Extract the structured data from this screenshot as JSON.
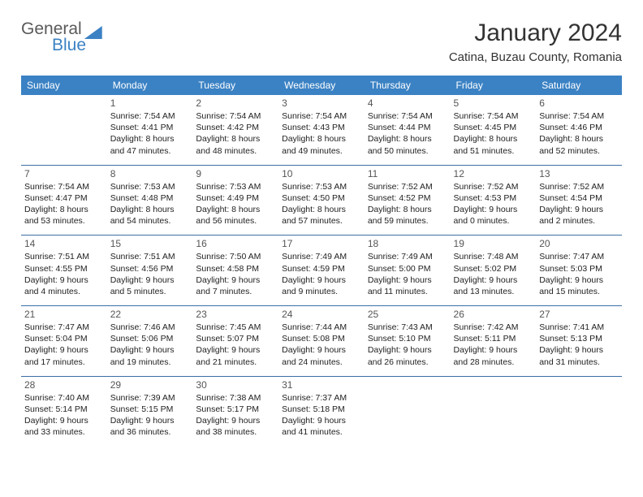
{
  "brand": {
    "a": "General",
    "b": "Blue"
  },
  "header": {
    "month": "January 2024",
    "location": "Catina, Buzau County, Romania"
  },
  "days": [
    "Sunday",
    "Monday",
    "Tuesday",
    "Wednesday",
    "Thursday",
    "Friday",
    "Saturday"
  ],
  "style": {
    "header_bg": "#3b82c4",
    "header_text": "#ffffff",
    "row_border": "#3b6fa5",
    "body_text": "#222222",
    "daynum_color": "#555555",
    "daynum_fontsize": 12,
    "cell_fontsize": 10.5,
    "header_fontsize": 12,
    "title_fontsize": 30,
    "location_fontsize": 15
  },
  "weeks": [
    [
      null,
      {
        "n": "1",
        "sr": "7:54 AM",
        "ss": "4:41 PM",
        "dl": "8 hours and 47 minutes."
      },
      {
        "n": "2",
        "sr": "7:54 AM",
        "ss": "4:42 PM",
        "dl": "8 hours and 48 minutes."
      },
      {
        "n": "3",
        "sr": "7:54 AM",
        "ss": "4:43 PM",
        "dl": "8 hours and 49 minutes."
      },
      {
        "n": "4",
        "sr": "7:54 AM",
        "ss": "4:44 PM",
        "dl": "8 hours and 50 minutes."
      },
      {
        "n": "5",
        "sr": "7:54 AM",
        "ss": "4:45 PM",
        "dl": "8 hours and 51 minutes."
      },
      {
        "n": "6",
        "sr": "7:54 AM",
        "ss": "4:46 PM",
        "dl": "8 hours and 52 minutes."
      }
    ],
    [
      {
        "n": "7",
        "sr": "7:54 AM",
        "ss": "4:47 PM",
        "dl": "8 hours and 53 minutes."
      },
      {
        "n": "8",
        "sr": "7:53 AM",
        "ss": "4:48 PM",
        "dl": "8 hours and 54 minutes."
      },
      {
        "n": "9",
        "sr": "7:53 AM",
        "ss": "4:49 PM",
        "dl": "8 hours and 56 minutes."
      },
      {
        "n": "10",
        "sr": "7:53 AM",
        "ss": "4:50 PM",
        "dl": "8 hours and 57 minutes."
      },
      {
        "n": "11",
        "sr": "7:52 AM",
        "ss": "4:52 PM",
        "dl": "8 hours and 59 minutes."
      },
      {
        "n": "12",
        "sr": "7:52 AM",
        "ss": "4:53 PM",
        "dl": "9 hours and 0 minutes."
      },
      {
        "n": "13",
        "sr": "7:52 AM",
        "ss": "4:54 PM",
        "dl": "9 hours and 2 minutes."
      }
    ],
    [
      {
        "n": "14",
        "sr": "7:51 AM",
        "ss": "4:55 PM",
        "dl": "9 hours and 4 minutes."
      },
      {
        "n": "15",
        "sr": "7:51 AM",
        "ss": "4:56 PM",
        "dl": "9 hours and 5 minutes."
      },
      {
        "n": "16",
        "sr": "7:50 AM",
        "ss": "4:58 PM",
        "dl": "9 hours and 7 minutes."
      },
      {
        "n": "17",
        "sr": "7:49 AM",
        "ss": "4:59 PM",
        "dl": "9 hours and 9 minutes."
      },
      {
        "n": "18",
        "sr": "7:49 AM",
        "ss": "5:00 PM",
        "dl": "9 hours and 11 minutes."
      },
      {
        "n": "19",
        "sr": "7:48 AM",
        "ss": "5:02 PM",
        "dl": "9 hours and 13 minutes."
      },
      {
        "n": "20",
        "sr": "7:47 AM",
        "ss": "5:03 PM",
        "dl": "9 hours and 15 minutes."
      }
    ],
    [
      {
        "n": "21",
        "sr": "7:47 AM",
        "ss": "5:04 PM",
        "dl": "9 hours and 17 minutes."
      },
      {
        "n": "22",
        "sr": "7:46 AM",
        "ss": "5:06 PM",
        "dl": "9 hours and 19 minutes."
      },
      {
        "n": "23",
        "sr": "7:45 AM",
        "ss": "5:07 PM",
        "dl": "9 hours and 21 minutes."
      },
      {
        "n": "24",
        "sr": "7:44 AM",
        "ss": "5:08 PM",
        "dl": "9 hours and 24 minutes."
      },
      {
        "n": "25",
        "sr": "7:43 AM",
        "ss": "5:10 PM",
        "dl": "9 hours and 26 minutes."
      },
      {
        "n": "26",
        "sr": "7:42 AM",
        "ss": "5:11 PM",
        "dl": "9 hours and 28 minutes."
      },
      {
        "n": "27",
        "sr": "7:41 AM",
        "ss": "5:13 PM",
        "dl": "9 hours and 31 minutes."
      }
    ],
    [
      {
        "n": "28",
        "sr": "7:40 AM",
        "ss": "5:14 PM",
        "dl": "9 hours and 33 minutes."
      },
      {
        "n": "29",
        "sr": "7:39 AM",
        "ss": "5:15 PM",
        "dl": "9 hours and 36 minutes."
      },
      {
        "n": "30",
        "sr": "7:38 AM",
        "ss": "5:17 PM",
        "dl": "9 hours and 38 minutes."
      },
      {
        "n": "31",
        "sr": "7:37 AM",
        "ss": "5:18 PM",
        "dl": "9 hours and 41 minutes."
      },
      null,
      null,
      null
    ]
  ]
}
